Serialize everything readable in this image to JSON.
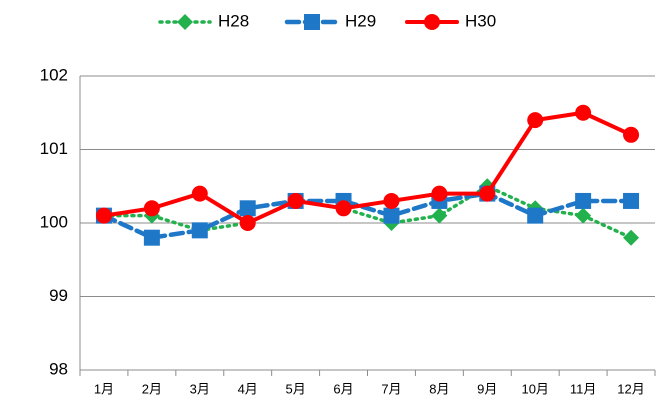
{
  "chart_data": {
    "type": "line",
    "categories": [
      "1月",
      "2月",
      "3月",
      "4月",
      "5月",
      "6月",
      "7月",
      "8月",
      "9月",
      "10月",
      "11月",
      "12月"
    ],
    "series": [
      {
        "name": "H28",
        "color": "#22b14c",
        "marker": "diamond",
        "line_style": "dotted",
        "values": [
          100.1,
          100.1,
          99.9,
          100.0,
          100.3,
          100.2,
          100.0,
          100.1,
          100.5,
          100.2,
          100.1,
          99.8
        ]
      },
      {
        "name": "H29",
        "color": "#1f77c8",
        "marker": "square",
        "line_style": "dashed",
        "values": [
          100.1,
          99.8,
          99.9,
          100.2,
          100.3,
          100.3,
          100.1,
          100.3,
          100.4,
          100.1,
          100.3,
          100.3
        ]
      },
      {
        "name": "H30",
        "color": "#ff0000",
        "marker": "circle",
        "line_style": "solid",
        "values": [
          100.1,
          100.2,
          100.4,
          100.0,
          100.3,
          100.2,
          100.3,
          100.4,
          100.4,
          101.4,
          101.5,
          101.2
        ]
      }
    ],
    "ylim": [
      98,
      102
    ],
    "yticks": [
      98,
      99,
      100,
      101,
      102
    ],
    "grid": true,
    "legend": "top"
  }
}
